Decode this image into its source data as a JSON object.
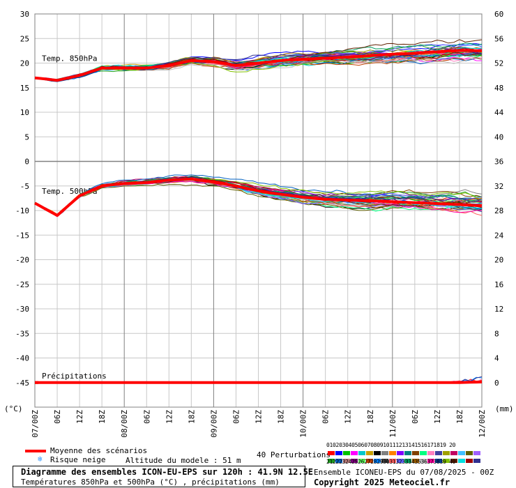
{
  "chart_data": {
    "type": "line",
    "title": "Diagramme des ensembles ICON-EU-EPS sur 120h : 41.9N 12.5E",
    "subtitle": "Températures 850hPa et 500hPa (°C) , précipitations (mm)",
    "left_unit": "(°C)",
    "right_unit": "(mm)",
    "left_ticks": [
      30,
      25,
      20,
      15,
      10,
      5,
      0,
      -5,
      -10,
      -15,
      -20,
      -25,
      -30,
      -35,
      -40,
      -45
    ],
    "right_ticks_upper": [
      60,
      56,
      52,
      48,
      44,
      40,
      36
    ],
    "right_ticks_lower": [
      32,
      28,
      24,
      20,
      16,
      12,
      8,
      4,
      0
    ],
    "ylim": [
      -50,
      30
    ],
    "x_ticks": [
      "07/00Z",
      "06Z",
      "12Z",
      "18Z",
      "08/00Z",
      "06Z",
      "12Z",
      "18Z",
      "09/00Z",
      "06Z",
      "12Z",
      "18Z",
      "10/00Z",
      "06Z",
      "12Z",
      "18Z",
      "11/00Z",
      "06Z",
      "12Z",
      "18Z",
      "12/00Z"
    ],
    "x_hours": [
      0,
      120
    ],
    "panel_labels": {
      "t850": "Temp. 850hPa",
      "t500": "Temp. 500hPa",
      "precip": "Précipitations"
    },
    "series": [
      {
        "name": "Moyenne des scénarios",
        "panel": "t850",
        "x": [
          0,
          6,
          12,
          18,
          24,
          30,
          36,
          42,
          48,
          54,
          60,
          66,
          72,
          78,
          84,
          90,
          96,
          102,
          108,
          114,
          120
        ],
        "values": [
          17,
          16.5,
          17.5,
          19,
          19,
          19,
          19.5,
          20.5,
          20.3,
          19.5,
          20,
          20.5,
          20.8,
          21,
          21.2,
          21.5,
          21.8,
          22,
          22.3,
          22.6,
          22.5
        ]
      },
      {
        "name": "Moyenne des scénarios",
        "panel": "t500",
        "x": [
          0,
          6,
          12,
          18,
          24,
          30,
          36,
          42,
          48,
          54,
          60,
          66,
          72,
          78,
          84,
          90,
          96,
          102,
          108,
          114,
          120
        ],
        "values": [
          -8.5,
          -11,
          -7,
          -5,
          -4.5,
          -4.3,
          -3.8,
          -3.6,
          -4.2,
          -5,
          -6,
          -6.7,
          -7.3,
          -7.7,
          -7.9,
          -8,
          -8.2,
          -8.4,
          -8.6,
          -8.8,
          -9
        ]
      },
      {
        "name": "Moyenne des scénarios",
        "panel": "precip",
        "x": [
          0,
          114,
          120
        ],
        "values": [
          0,
          0,
          0.1
        ]
      }
    ],
    "member_colors": [
      "#ff0000",
      "#0000ff",
      "#00c000",
      "#ff00ff",
      "#00c8c8",
      "#c8a000",
      "#000000",
      "#808080",
      "#ff8000",
      "#8000ff",
      "#008080",
      "#804000",
      "#00ff80",
      "#ff80c0",
      "#4040a0",
      "#a0a000",
      "#c00060",
      "#40c0ff",
      "#606000",
      "#a060ff",
      "#20a020",
      "#0060c0",
      "#c08080",
      "#800080",
      "#60ff60",
      "#c04000",
      "#0080ff",
      "#404040",
      "#ff6060",
      "#6060ff",
      "#00a060",
      "#a06000",
      "#c0c0c0",
      "#ff00a0",
      "#0040a0",
      "#80c000",
      "#602000",
      "#00e0e0",
      "#a00000",
      "#303090"
    ],
    "grid": true
  },
  "legend": {
    "mean_label": "Moyenne des scénarios",
    "snow_label": "Risque neige",
    "altitude_label": "Altitude du modele : 51 m",
    "perturb_label": "40 Perturbations",
    "row1_numbers": "01020304050607080910111213141516171819 20",
    "row2_numbers": "21222324252627282930313233343536373839 40"
  },
  "footer": {
    "title": "Diagramme des ensembles ICON-EU-EPS sur 120h : 41.9N 12.5E",
    "subtitle": "Températures 850hPa et 500hPa (°C) , précipitations (mm)",
    "run": "Ensemble ICONEU-EPS du 07/08/2025 - 00Z",
    "copyright": "Copyright 2025 Meteociel.fr"
  },
  "colors": {
    "mean": "#ff0000",
    "grid": "#c8c8c8",
    "snow": "#3399ff"
  }
}
